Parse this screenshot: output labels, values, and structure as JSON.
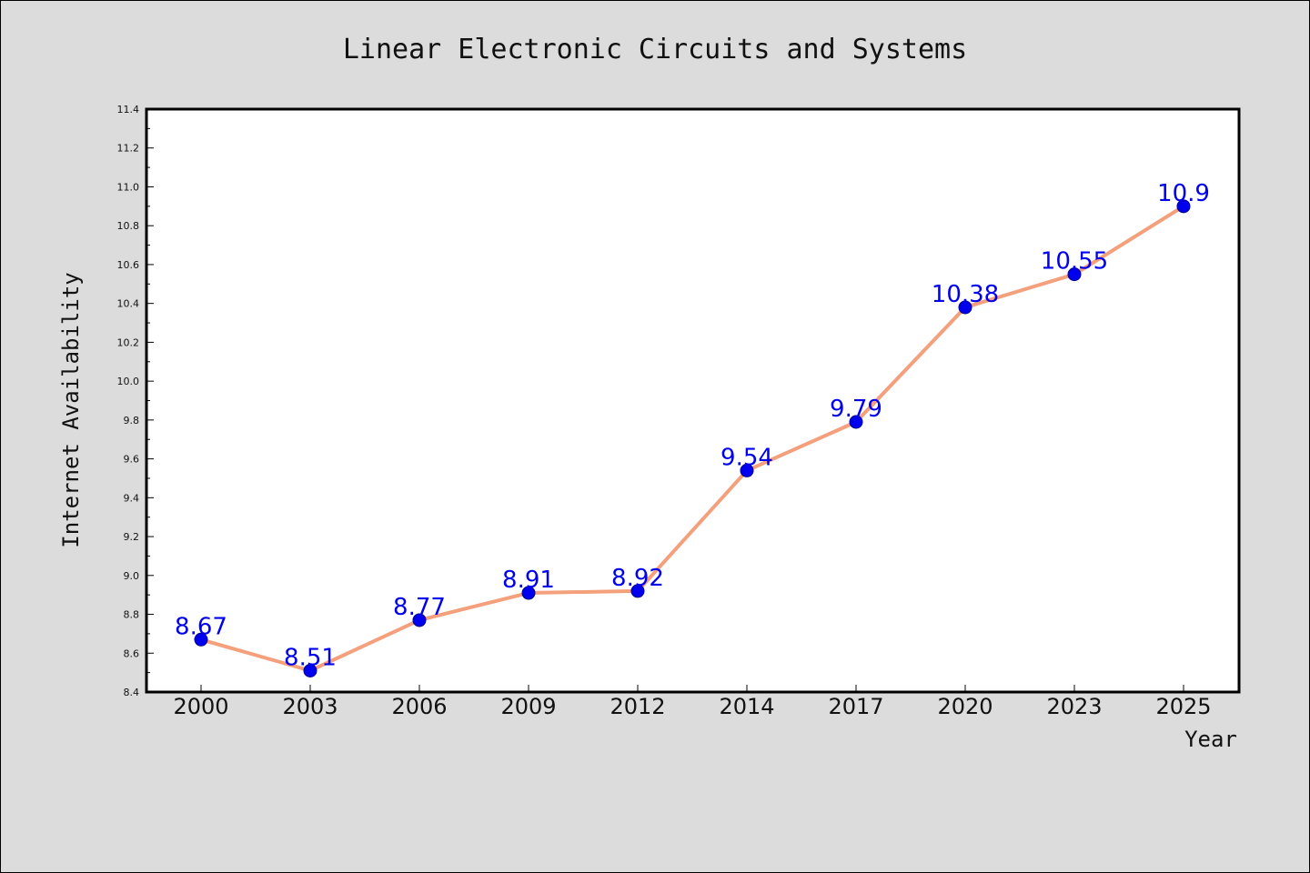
{
  "chart_data": {
    "type": "line",
    "title": "Linear Electronic Circuits and Systems",
    "xlabel": "Year",
    "ylabel": "Internet Availability",
    "categories": [
      "2000",
      "2003",
      "2006",
      "2009",
      "2012",
      "2014",
      "2017",
      "2020",
      "2023",
      "2025"
    ],
    "series": [
      {
        "values": [
          8.67,
          8.51,
          8.77,
          8.91,
          8.92,
          9.54,
          9.79,
          10.38,
          10.55,
          10.9
        ]
      }
    ],
    "data_labels": [
      "8.67",
      "8.51",
      "8.77",
      "8.91",
      "8.92",
      "9.54",
      "9.79",
      "10.38",
      "10.55",
      "10.9"
    ],
    "ylim": [
      8.4,
      11.4
    ],
    "yticks": [
      "8.4",
      "8.6",
      "8.8",
      "9.0",
      "9.2",
      "9.4",
      "9.6",
      "9.8",
      "10.0",
      "10.2",
      "10.4",
      "10.6",
      "10.8",
      "11.0",
      "11.2",
      "11.4"
    ],
    "grid": false,
    "legend": "none",
    "colors": {
      "line": "#f4a07c",
      "marker": "#0000ee",
      "marker_edge": "#00008b",
      "label": "#0000ee",
      "background": "#dcdcdc",
      "plot_bg": "#ffffff"
    }
  }
}
